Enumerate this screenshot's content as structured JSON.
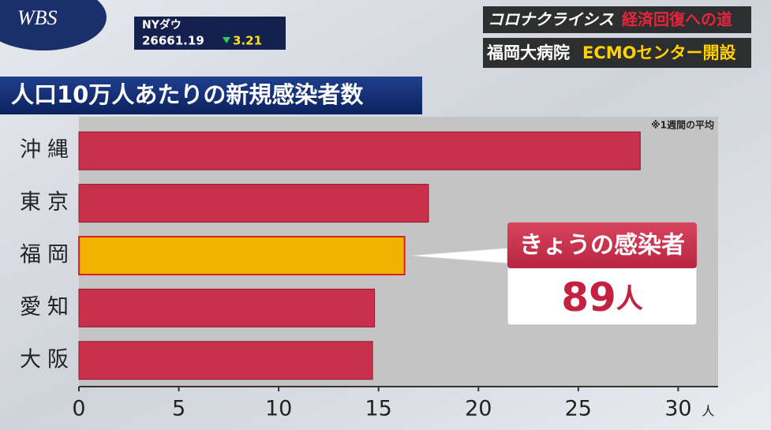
{
  "header": {
    "logo": "WBS",
    "market_name": "NYダウ",
    "market_value": "26661.19",
    "market_change": "3.21",
    "series_title": "コロナクライシス",
    "series_subtitle": "経済回復への道",
    "headline_place": "福岡大病院",
    "headline_topic": "ECMOセンター開設"
  },
  "chart_data": {
    "type": "hbar",
    "title": "人口10万人あたりの新規感染者数",
    "note": "※1週間の平均",
    "categories": [
      "沖縄",
      "東京",
      "福岡",
      "愛知",
      "大阪"
    ],
    "values": [
      28.1,
      17.5,
      16.3,
      14.8,
      14.7
    ],
    "colors": [
      "#c9304c",
      "#c9304c",
      "#f0b400",
      "#c9304c",
      "#c9304c"
    ],
    "xlim": [
      0,
      32
    ],
    "xticks": [
      0,
      5,
      10,
      15,
      20,
      25,
      30
    ],
    "x_unit": "人",
    "callout": {
      "label": "きょうの感染者",
      "value": 89,
      "unit": "人"
    }
  }
}
